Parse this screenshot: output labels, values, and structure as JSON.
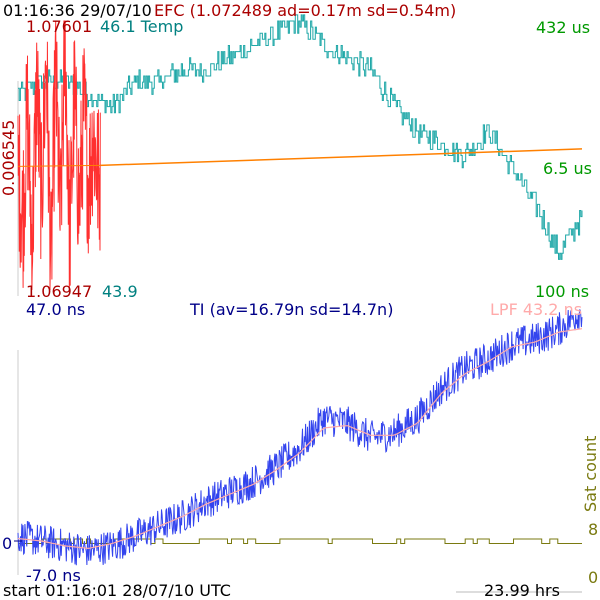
{
  "header": {
    "timestamp": "01:16:36 29/07/10",
    "efc_title": "EFC (1.072489 ad=0.17m sd=0.54m)",
    "efc_top": "1.07601",
    "temp_top": "46.1 Temp",
    "efc_bottom": "1.06947",
    "temp_bottom": "43.9",
    "efc_axis_span": "0.006545"
  },
  "right_labels": {
    "top": "432 us",
    "mid": "6.5 us",
    "bottom": "100 ns",
    "lpf": "LPF 43.2 ns",
    "sat_count": "Sat count",
    "sat_top": "8",
    "sat_bottom": "0"
  },
  "ti": {
    "title": "TI (av=16.79n sd=14.7n)",
    "top_label": "47.0 ns",
    "bottom_label": "-7.0 ns",
    "zero_label": "0"
  },
  "footer": {
    "start": "start 01:16:01 28/07/10 UTC",
    "duration": "23.99 hrs"
  },
  "colors": {
    "efc": "#ff3030",
    "efc_text": "#aa0000",
    "temp": "#20a8a8",
    "temp_text": "#008080",
    "pll": "#ff8000",
    "ti": "#3344ee",
    "ti_text": "#000088",
    "lpf": "#ffaaaa",
    "sat": "#7a7a10",
    "green": "#009900"
  },
  "chart_data": [
    {
      "type": "line",
      "name": "EFC",
      "x_unit": "hrs",
      "xlim": [
        0,
        3.5
      ],
      "ylim": [
        1.06947,
        1.07601
      ],
      "x": [
        0.0,
        0.2,
        0.4,
        0.6,
        0.8,
        1.0,
        1.2,
        1.4,
        1.6,
        1.8,
        2.0,
        2.2,
        2.4,
        2.6,
        2.8,
        3.0,
        3.2,
        3.4
      ],
      "y": [
        1.0725,
        1.0712,
        1.0738,
        1.0705,
        1.0745,
        1.0716,
        1.0752,
        1.07,
        1.0748,
        1.071,
        1.0756,
        1.0707,
        1.0742,
        1.0714,
        1.0739,
        1.072,
        1.0733,
        1.0722
      ]
    },
    {
      "type": "line",
      "name": "Temp",
      "x_unit": "hrs",
      "xlim": [
        0,
        23.99
      ],
      "ylim": [
        43.9,
        46.1
      ],
      "x": [
        0,
        1,
        2,
        3,
        4,
        5,
        6,
        7,
        8,
        9,
        10,
        11,
        12,
        13,
        14,
        15,
        16,
        17,
        18,
        19,
        20,
        21,
        22,
        23,
        23.99
      ],
      "y": [
        45.5,
        45.6,
        45.6,
        45.5,
        45.4,
        45.6,
        45.6,
        45.7,
        45.7,
        45.8,
        45.9,
        46.0,
        46.1,
        45.9,
        45.8,
        45.7,
        45.4,
        45.2,
        45.1,
        45.0,
        45.2,
        44.9,
        44.6,
        44.2,
        44.5
      ]
    },
    {
      "type": "line",
      "name": "TI",
      "x_unit": "hrs",
      "xlim": [
        0,
        23.99
      ],
      "ylim": [
        -7.0,
        47.0
      ],
      "x": [
        0,
        1,
        2,
        3,
        4,
        5,
        6,
        7,
        8,
        9,
        10,
        11,
        12,
        13,
        14,
        15,
        16,
        17,
        18,
        19,
        20,
        21,
        22,
        23,
        23.99
      ],
      "y": [
        1,
        0,
        -1,
        -2,
        -1,
        1,
        3,
        5,
        8,
        10,
        12,
        15,
        19,
        25,
        24,
        21,
        22,
        25,
        31,
        35,
        37,
        40,
        41,
        43,
        47
      ],
      "lpf": [
        0.5,
        0,
        -1,
        -1.5,
        -0.5,
        1,
        3,
        5,
        7.5,
        9.5,
        11.5,
        14.5,
        18,
        23,
        23.5,
        21.5,
        21.5,
        24,
        30,
        34,
        36.5,
        39.5,
        40.5,
        42.5,
        43.2
      ]
    },
    {
      "type": "line",
      "name": "Sat count",
      "x_unit": "hrs",
      "xlim": [
        0,
        23.99
      ],
      "ylim": [
        0,
        8
      ],
      "x": [
        0,
        1,
        2,
        3,
        4,
        5,
        6,
        7,
        8,
        9,
        10,
        11,
        12,
        13,
        14,
        15,
        16,
        17,
        18,
        19,
        20,
        21,
        22,
        23,
        23.99
      ],
      "y": [
        7,
        8,
        8,
        7,
        8,
        8,
        7,
        8,
        8,
        8,
        7,
        8,
        8,
        8,
        8,
        7,
        8,
        8,
        7,
        8,
        7,
        8,
        8,
        7,
        8
      ]
    }
  ]
}
